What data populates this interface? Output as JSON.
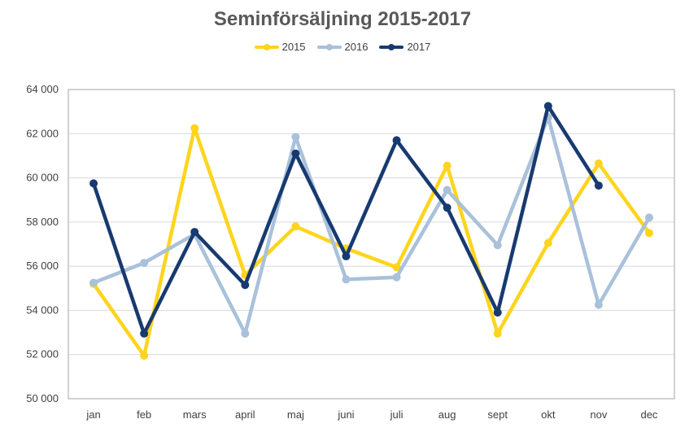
{
  "chart_data": {
    "type": "line",
    "title": "Seminförsäljning 2015-2017",
    "categories": [
      "jan",
      "feb",
      "mars",
      "april",
      "maj",
      "juni",
      "juli",
      "aug",
      "sept",
      "okt",
      "nov",
      "dec"
    ],
    "y_tick_labels": [
      "50 000",
      "52 000",
      "54 000",
      "56 000",
      "58 000",
      "60 000",
      "62 000",
      "64 000"
    ],
    "ylim": [
      50000,
      64000
    ],
    "ystep": 2000,
    "grid": true,
    "legend_position": "top",
    "series": [
      {
        "name": "2015",
        "color": "#FFD41D",
        "values": [
          55200,
          51950,
          62250,
          55600,
          57800,
          56800,
          55950,
          60550,
          52950,
          57050,
          60650,
          57500
        ]
      },
      {
        "name": "2016",
        "color": "#A9C1DA",
        "values": [
          55250,
          56150,
          57450,
          52950,
          61850,
          55400,
          55500,
          59450,
          56950,
          62750,
          54250,
          58200
        ]
      },
      {
        "name": "2017",
        "color": "#173A70",
        "values": [
          59750,
          52950,
          57550,
          55150,
          61100,
          56450,
          61700,
          58650,
          53900,
          63250,
          59650,
          null
        ]
      }
    ]
  }
}
